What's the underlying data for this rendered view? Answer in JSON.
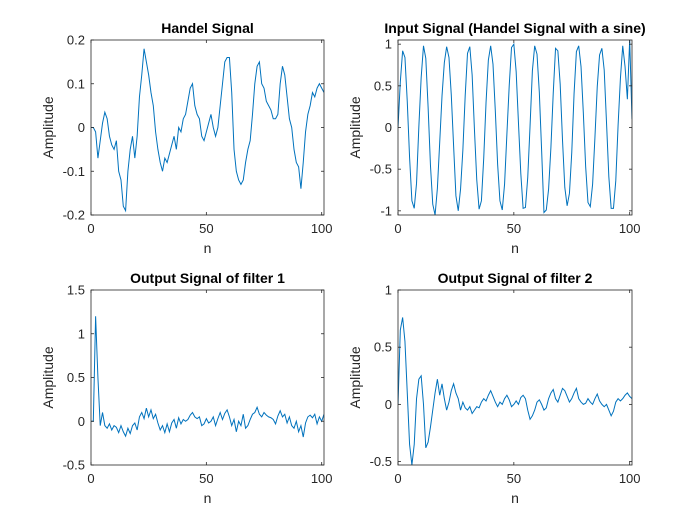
{
  "chart_data": [
    {
      "type": "line",
      "title": "Handel Signal",
      "xlabel": "n",
      "ylabel": "Amplitude",
      "xlim": [
        0,
        101
      ],
      "ylim": [
        -0.2,
        0.2
      ],
      "xticks": [
        0,
        50,
        100
      ],
      "xtick_labels": [
        "0",
        "50",
        "100"
      ],
      "yticks": [
        -0.2,
        -0.1,
        0,
        0.1,
        0.2
      ],
      "ytick_labels": [
        "-0.2",
        "-0.1",
        "0",
        "0.1",
        "0.2"
      ],
      "grid": false,
      "color": "#0072bd",
      "series": [
        {
          "x": [
            0,
            1,
            2,
            3,
            4,
            5,
            6,
            7,
            8,
            9,
            10,
            11,
            12,
            13,
            14,
            15,
            16,
            17,
            18,
            19,
            20,
            21,
            22,
            23,
            24,
            25,
            26,
            27,
            28,
            29,
            30,
            31,
            32,
            33,
            34,
            35,
            36,
            37,
            38,
            39,
            40,
            41,
            42,
            43,
            44,
            45,
            46,
            47,
            48,
            49,
            50,
            51,
            52,
            53,
            54,
            55,
            56,
            57,
            58,
            59,
            60,
            61,
            62,
            63,
            64,
            65,
            66,
            67,
            68,
            69,
            70,
            71,
            72,
            73,
            74,
            75,
            76,
            77,
            78,
            79,
            80,
            81,
            82,
            83,
            84,
            85,
            86,
            87,
            88,
            89,
            90,
            91,
            92,
            93,
            94,
            95,
            96,
            97,
            98,
            99,
            100,
            101
          ],
          "y": [
            0,
            0,
            -0.01,
            -0.07,
            -0.03,
            0.01,
            0.035,
            0.02,
            -0.02,
            -0.04,
            -0.05,
            -0.03,
            -0.1,
            -0.12,
            -0.18,
            -0.19,
            -0.1,
            -0.05,
            -0.02,
            -0.07,
            -0.02,
            0.07,
            0.12,
            0.18,
            0.15,
            0.12,
            0.08,
            0.05,
            -0.01,
            -0.05,
            -0.08,
            -0.1,
            -0.07,
            -0.08,
            -0.06,
            -0.04,
            -0.02,
            -0.05,
            0,
            -0.01,
            0.02,
            0.03,
            0.06,
            0.09,
            0.1,
            0.05,
            0.03,
            0.02,
            -0.02,
            -0.03,
            -0.01,
            0.01,
            0.03,
            0,
            -0.02,
            0,
            0.05,
            0.1,
            0.15,
            0.16,
            0.16,
            0.08,
            -0.05,
            -0.1,
            -0.12,
            -0.13,
            -0.12,
            -0.08,
            -0.05,
            -0.03,
            0.03,
            0.1,
            0.14,
            0.15,
            0.1,
            0.09,
            0.06,
            0.05,
            0.04,
            0.02,
            0.02,
            0.03,
            0.1,
            0.14,
            0.12,
            0.07,
            0.02,
            0,
            -0.05,
            -0.08,
            -0.09,
            -0.14,
            -0.08,
            -0.01,
            0.03,
            0.05,
            0.08,
            0.07,
            0.09,
            0.1,
            0.09,
            0.08
          ]
        }
      ]
    },
    {
      "type": "line",
      "title": "Input Signal (Handel Signal with a sine)",
      "xlabel": "n",
      "ylabel": "Amplitude",
      "xlim": [
        0,
        101
      ],
      "ylim": [
        -1.05,
        1.05
      ],
      "xticks": [
        0,
        50,
        100
      ],
      "xtick_labels": [
        "0",
        "50",
        "100"
      ],
      "yticks": [
        -1,
        -0.5,
        0,
        0.5,
        1
      ],
      "ytick_labels": [
        "-1",
        "-0.5",
        "0",
        "0.5",
        "1"
      ],
      "grid": false,
      "color": "#0072bd",
      "series": [
        {
          "x": [
            0,
            1,
            2,
            3,
            4,
            5,
            6,
            7,
            8,
            9,
            10,
            11,
            12,
            13,
            14,
            15,
            16,
            17,
            18,
            19,
            20,
            21,
            22,
            23,
            24,
            25,
            26,
            27,
            28,
            29,
            30,
            31,
            32,
            33,
            34,
            35,
            36,
            37,
            38,
            39,
            40,
            41,
            42,
            43,
            44,
            45,
            46,
            47,
            48,
            49,
            50,
            51,
            52,
            53,
            54,
            55,
            56,
            57,
            58,
            59,
            60,
            61,
            62,
            63,
            64,
            65,
            66,
            67,
            68,
            69,
            70,
            71,
            72,
            73,
            74,
            75,
            76,
            77,
            78,
            79,
            80,
            81,
            82,
            83,
            84,
            85,
            86,
            87,
            88,
            89,
            90,
            91,
            92,
            93,
            94,
            95,
            96,
            97,
            98,
            99,
            100,
            101
          ],
          "y": [
            0,
            0.55,
            0.92,
            0.84,
            0.31,
            -0.36,
            -0.88,
            -0.97,
            -0.67,
            0.01,
            0.6,
            0.98,
            0.83,
            0.24,
            -0.45,
            -0.92,
            -1.05,
            -0.73,
            -0.18,
            0.38,
            0.78,
            0.97,
            0.84,
            0.39,
            -0.22,
            -0.82,
            -1,
            -0.74,
            -0.27,
            0.38,
            0.89,
            0.97,
            0.63,
            -0.03,
            -0.63,
            -0.98,
            -0.88,
            -0.37,
            0.3,
            0.81,
            0.98,
            0.76,
            0.2,
            -0.44,
            -0.88,
            -0.99,
            -0.68,
            -0.08,
            0.5,
            0.96,
            1,
            0.67,
            0.05,
            -0.55,
            -0.97,
            -0.96,
            -0.6,
            0.02,
            0.68,
            0.98,
            0.88,
            0.42,
            -0.28,
            -1.02,
            -0.99,
            -0.74,
            -0.24,
            0.41,
            0.95,
            0.92,
            0.52,
            -0.15,
            -0.72,
            -0.94,
            -0.79,
            -0.3,
            0.41,
            0.91,
            0.98,
            0.73,
            0.17,
            -0.47,
            -0.9,
            -0.95,
            -0.68,
            -0.12,
            0.49,
            0.87,
            0.95,
            0.69,
            0.06,
            -0.59,
            -0.97,
            -0.97,
            -0.64,
            0.03,
            0.59,
            0.98,
            0.73,
            0.34,
            1.05,
            0.1
          ]
        }
      ]
    },
    {
      "type": "line",
      "title": "Output Signal of filter 1",
      "xlabel": "n",
      "ylabel": "Amplitude",
      "xlim": [
        0,
        101
      ],
      "ylim": [
        -0.5,
        1.5
      ],
      "xticks": [
        0,
        50,
        100
      ],
      "xtick_labels": [
        "0",
        "50",
        "100"
      ],
      "yticks": [
        -0.5,
        0,
        0.5,
        1,
        1.5
      ],
      "ytick_labels": [
        "-0.5",
        "0",
        "0.5",
        "1",
        "1.5"
      ],
      "grid": false,
      "color": "#0072bd",
      "series": [
        {
          "x": [
            0,
            1,
            2,
            3,
            4,
            5,
            6,
            7,
            8,
            9,
            10,
            11,
            12,
            13,
            14,
            15,
            16,
            17,
            18,
            19,
            20,
            21,
            22,
            23,
            24,
            25,
            26,
            27,
            28,
            29,
            30,
            31,
            32,
            33,
            34,
            35,
            36,
            37,
            38,
            39,
            40,
            41,
            42,
            43,
            44,
            45,
            46,
            47,
            48,
            49,
            50,
            51,
            52,
            53,
            54,
            55,
            56,
            57,
            58,
            59,
            60,
            61,
            62,
            63,
            64,
            65,
            66,
            67,
            68,
            69,
            70,
            71,
            72,
            73,
            74,
            75,
            76,
            77,
            78,
            79,
            80,
            81,
            82,
            83,
            84,
            85,
            86,
            87,
            88,
            89,
            90,
            91,
            92,
            93,
            94,
            95,
            96,
            97,
            98,
            99,
            100,
            101
          ],
          "y": [
            0,
            0,
            1.2,
            0.5,
            -0.05,
            0.1,
            -0.05,
            -0.08,
            -0.03,
            -0.1,
            -0.05,
            -0.07,
            -0.13,
            -0.05,
            -0.12,
            -0.17,
            -0.08,
            -0.14,
            -0.05,
            -0.02,
            -0.1,
            0.05,
            0.1,
            0.03,
            0.15,
            0.05,
            0.13,
            0.03,
            0.08,
            -0.02,
            -0.1,
            -0.05,
            -0.13,
            -0.03,
            -0.12,
            -0.02,
            0.02,
            -0.08,
            0.04,
            -0.03,
            0.02,
            0,
            0.02,
            0.07,
            0.1,
            0.05,
            0.03,
            0.05,
            -0.05,
            -0.03,
            0.03,
            -0.02,
            0,
            0.05,
            -0.05,
            0.03,
            0.1,
            0.02,
            0.09,
            0.13,
            0.05,
            -0.05,
            0.02,
            -0.12,
            0,
            -0.05,
            0.08,
            -0.08,
            -0.05,
            0.02,
            0.08,
            0.1,
            0.16,
            0.08,
            0.05,
            0.1,
            0.07,
            0.05,
            0.04,
            0.02,
            -0.03,
            0.06,
            0.12,
            0.05,
            0.08,
            -0.02,
            0.05,
            -0.05,
            -0.08,
            0,
            -0.12,
            -0.05,
            -0.18,
            -0.02,
            0.05,
            0.07,
            0.04,
            0.08,
            -0.03,
            0.05,
            0,
            0.08
          ]
        }
      ]
    },
    {
      "type": "line",
      "title": "Output Signal of filter 2",
      "xlabel": "n",
      "ylabel": "Amplitude",
      "xlim": [
        0,
        101
      ],
      "ylim": [
        -0.53,
        1
      ],
      "xticks": [
        0,
        50,
        100
      ],
      "xtick_labels": [
        "0",
        "50",
        "100"
      ],
      "yticks": [
        -0.5,
        0,
        0.5,
        1
      ],
      "ytick_labels": [
        "-0.5",
        "0",
        "0.5",
        "1"
      ],
      "grid": false,
      "color": "#0072bd",
      "series": [
        {
          "x": [
            0,
            1,
            2,
            3,
            4,
            5,
            6,
            7,
            8,
            9,
            10,
            11,
            12,
            13,
            14,
            15,
            16,
            17,
            18,
            19,
            20,
            21,
            22,
            23,
            24,
            25,
            26,
            27,
            28,
            29,
            30,
            31,
            32,
            33,
            34,
            35,
            36,
            37,
            38,
            39,
            40,
            41,
            42,
            43,
            44,
            45,
            46,
            47,
            48,
            49,
            50,
            51,
            52,
            53,
            54,
            55,
            56,
            57,
            58,
            59,
            60,
            61,
            62,
            63,
            64,
            65,
            66,
            67,
            68,
            69,
            70,
            71,
            72,
            73,
            74,
            75,
            76,
            77,
            78,
            79,
            80,
            81,
            82,
            83,
            84,
            85,
            86,
            87,
            88,
            89,
            90,
            91,
            92,
            93,
            94,
            95,
            96,
            97,
            98,
            99,
            100,
            101
          ],
          "y": [
            0,
            0.65,
            0.76,
            0.55,
            0.1,
            -0.35,
            -0.53,
            -0.35,
            0.05,
            0.22,
            0.25,
            0,
            -0.38,
            -0.33,
            -0.2,
            -0.05,
            0.1,
            0.22,
            0.08,
            0.18,
            0.05,
            -0.05,
            0.02,
            0.12,
            0.18,
            0.1,
            0.05,
            -0.05,
            0.02,
            -0.03,
            -0.05,
            -0.02,
            -0.08,
            -0.05,
            -0.02,
            -0.03,
            0.02,
            0.05,
            0.03,
            0.08,
            0.12,
            0.07,
            0.02,
            -0.02,
            0.02,
            0.0,
            0.05,
            0.08,
            0.04,
            -0.02,
            0.0,
            0.03,
            0.0,
            0.06,
            0.08,
            0.05,
            -0.05,
            -0.13,
            -0.1,
            -0.05,
            0.02,
            0.04,
            0.0,
            -0.05,
            -0.03,
            0.05,
            0.1,
            0.13,
            0.05,
            0.02,
            0.08,
            0.14,
            0.12,
            0.07,
            0.02,
            0.05,
            0.1,
            0.14,
            0.05,
            0.02,
            0.0,
            0.01,
            0.05,
            0.02,
            0.0,
            0.05,
            0.09,
            0.03,
            0.0,
            -0.02,
            0.0,
            -0.05,
            -0.1,
            -0.06,
            0.02,
            0.05,
            0.03,
            0.05,
            0.08,
            0.1,
            0.07,
            0.05
          ]
        }
      ]
    }
  ]
}
